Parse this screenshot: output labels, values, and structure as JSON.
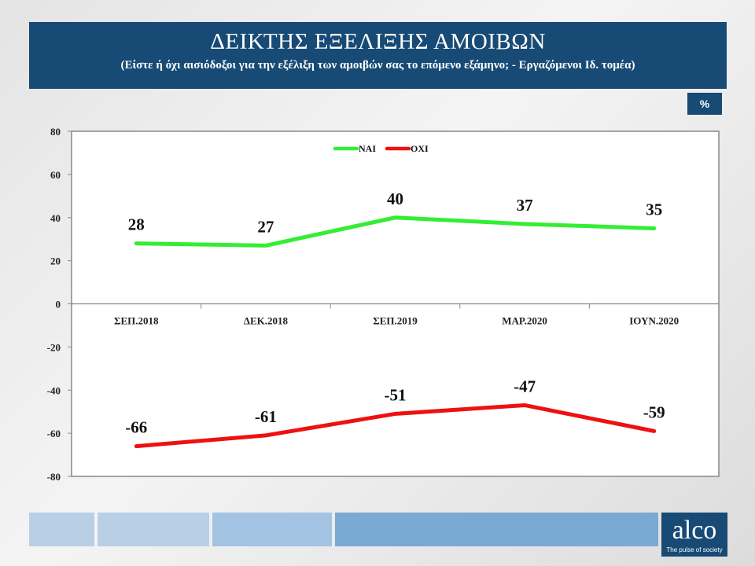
{
  "header": {
    "title": "ΔΕΙΚΤΗΣ ΕΞΕΛΙΞΗΣ ΑΜΟΙΒΩΝ",
    "subtitle": "(Είστε ή όχι αισιόδοξοι για την εξέλιξη των αμοιβών σας το επόμενο εξάμηνο; - Εργαζόμενοι Ιδ. τομέα)"
  },
  "unit_badge": "%",
  "chart_data": {
    "type": "line",
    "categories": [
      "ΣΕΠ.2018",
      "ΔΕΚ.2018",
      "ΣΕΠ.2019",
      "ΜΑΡ.2020",
      "ΙΟΥΝ.2020"
    ],
    "series": [
      {
        "name": "ΝΑΙ",
        "values": [
          28,
          27,
          40,
          37,
          35
        ],
        "color": "#33ee33"
      },
      {
        "name": "ΟΧΙ",
        "values": [
          -66,
          -61,
          -51,
          -47,
          -59
        ],
        "color": "#ee1111"
      }
    ],
    "ylim": [
      -80,
      80
    ],
    "yticks": [
      80,
      60,
      40,
      20,
      0,
      -20,
      -40,
      -60,
      -80
    ],
    "legend": "top-center",
    "grid": false
  },
  "logo": {
    "word": "alco",
    "tagline": "The pulse of society"
  },
  "colors": {
    "brand": "#174a74",
    "footer_light": "#b8cfe5",
    "footer_mid": "#a3c3e2",
    "footer_dark": "#7aa9d4"
  }
}
